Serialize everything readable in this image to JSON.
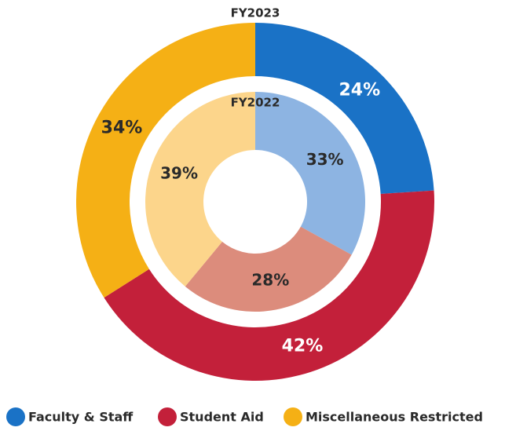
{
  "chart_data": {
    "type": "donut",
    "categories": [
      "Faculty & Staff",
      "Student Aid",
      "Miscellaneous Restricted"
    ],
    "series": [
      {
        "name": "FY2023",
        "values": [
          24,
          42,
          34
        ],
        "value_labels": [
          "24%",
          "42%",
          "34%"
        ],
        "colors": [
          "#1a72c6",
          "#c3203a",
          "#f5b015"
        ],
        "label_colors": [
          "#ffffff",
          "#ffffff",
          "#2a2a2a"
        ]
      },
      {
        "name": "FY2022",
        "values": [
          33,
          28,
          39
        ],
        "value_labels": [
          "33%",
          "28%",
          "39%"
        ],
        "colors": [
          "#8db4e2",
          "#dc8c7c",
          "#fcd58b"
        ],
        "label_colors": [
          "#2a2a2a",
          "#2a2a2a",
          "#2a2a2a"
        ]
      }
    ],
    "legend_colors": [
      "#1a72c6",
      "#c3203a",
      "#f5b015"
    ]
  }
}
